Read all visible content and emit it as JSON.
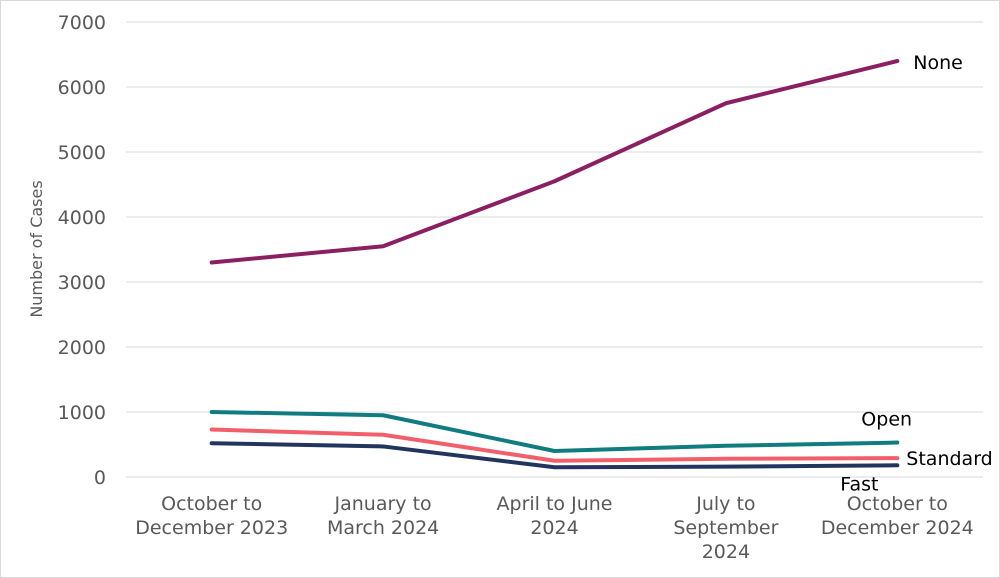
{
  "chart_data": {
    "type": "line",
    "title": "",
    "xlabel": "",
    "ylabel": "Number of Cases",
    "ylim": [
      0,
      7000
    ],
    "ytick_step": 1000,
    "yticks": [
      0,
      1000,
      2000,
      3000,
      4000,
      5000,
      6000,
      7000
    ],
    "grid": true,
    "legend_position": "line-end-labels",
    "categories": [
      {
        "label": "October to December 2023",
        "lines": [
          "October to",
          "December 2023"
        ]
      },
      {
        "label": "January to March 2024",
        "lines": [
          "January to",
          "March 2024"
        ]
      },
      {
        "label": "April to June 2024",
        "lines": [
          "April to June",
          "2024"
        ]
      },
      {
        "label": "July to September 2024",
        "lines": [
          "July to",
          "September",
          "2024"
        ]
      },
      {
        "label": "October to December 2024",
        "lines": [
          "October to",
          "December 2024"
        ]
      }
    ],
    "series": [
      {
        "name": "None",
        "color": "#8A1F61",
        "values": [
          3300,
          3550,
          4550,
          5750,
          6400
        ],
        "label_offset": {
          "dx": 16,
          "dy": 2
        }
      },
      {
        "name": "Open",
        "color": "#117C80",
        "values": [
          1000,
          950,
          400,
          480,
          530
        ],
        "label_offset": {
          "dx": -36,
          "dy": -23
        }
      },
      {
        "name": "Standard",
        "color": "#F1606A",
        "values": [
          730,
          650,
          250,
          280,
          290
        ],
        "label_offset": {
          "dx": 9,
          "dy": 1
        }
      },
      {
        "name": "Fast",
        "color": "#22355E",
        "values": [
          520,
          470,
          150,
          160,
          180
        ],
        "label_offset": {
          "dx": -57,
          "dy": 19
        }
      }
    ]
  },
  "style": {
    "grid_color": "#d9d9d9",
    "axis_text_color": "#595959",
    "series_label_color": "#000000",
    "background": "#ffffff",
    "border_color": "#d9d9d9"
  }
}
